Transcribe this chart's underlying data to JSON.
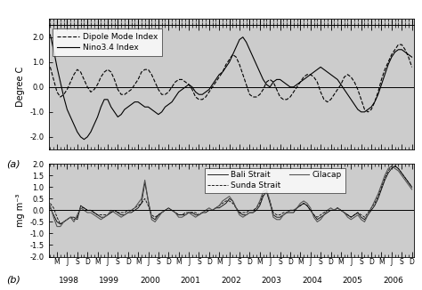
{
  "ylabel_a": "Degree C",
  "ylabel_b": "mg m⁻³",
  "ylim_a": [
    -2.5,
    2.5
  ],
  "ylim_b": [
    -2.0,
    2.0
  ],
  "yticks_a": [
    -2.0,
    -1.0,
    0.0,
    1.0,
    2.0
  ],
  "yticks_b": [
    -2.0,
    -1.5,
    -1.0,
    -0.5,
    0.0,
    0.5,
    1.0,
    1.5,
    2.0
  ],
  "legend_a_dashed": "Dipole Mode Index",
  "legend_a_solid": "Nino3.4 Index",
  "legend_b1": "Bali Strait",
  "legend_b2": "Sunda Strait",
  "legend_b3": "Cilacap",
  "xticklabels_years": [
    "1998",
    "1999",
    "2000",
    "2001",
    "2002",
    "2003",
    "2004",
    "2005",
    "2006"
  ],
  "label_a": "(a)",
  "label_b": "(b)"
}
